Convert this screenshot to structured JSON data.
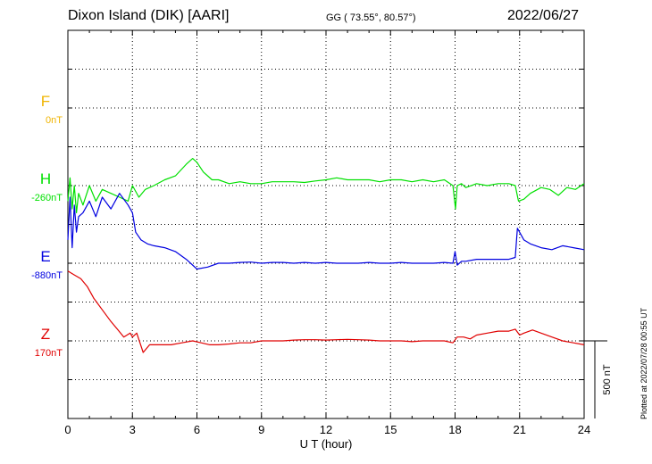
{
  "header": {
    "title": "Dixon Island (DIK)  [AARI]",
    "coords": "GG ( 73.55°,  80.57°)",
    "date": "2022/06/27"
  },
  "footer": {
    "plotted": "Plotted at 2022/07/28 00:55 UT"
  },
  "chart_data": {
    "type": "line",
    "xlabel": "U T (hour)",
    "xlim": [
      0,
      24
    ],
    "xticks": [
      0,
      3,
      6,
      9,
      12,
      15,
      18,
      21,
      24
    ],
    "ylim": [
      -1000,
      0
    ],
    "grid": true,
    "scale_bar": {
      "label": "500 nT",
      "value_nT": 500
    },
    "series": [
      {
        "name": "F",
        "baseline_label": "0nT",
        "baseline_position_nT": -200,
        "color": "#f0b400",
        "x": [],
        "y": []
      },
      {
        "name": "H",
        "baseline_label": "-260nT",
        "baseline_position_nT": -400,
        "color": "#00e000",
        "x": [
          0,
          0.1,
          0.2,
          0.3,
          0.4,
          0.5,
          0.7,
          1,
          1.3,
          1.6,
          2,
          2.4,
          2.8,
          3,
          3.3,
          3.6,
          4,
          4.5,
          5,
          5.5,
          5.8,
          6,
          6.3,
          6.7,
          7,
          7.5,
          8,
          8.5,
          9,
          9.5,
          10,
          10.5,
          11,
          11.5,
          12,
          12.5,
          13,
          13.5,
          14,
          14.5,
          15,
          15.5,
          16,
          16.5,
          17,
          17.5,
          17.9,
          18.02,
          18.1,
          18.3,
          18.5,
          19,
          19.5,
          20,
          20.5,
          20.8,
          20.95,
          21.2,
          21.5,
          22,
          22.4,
          22.8,
          23.2,
          23.6,
          24
        ],
        "y": [
          -440,
          -380,
          -460,
          -400,
          -470,
          -420,
          -450,
          -400,
          -440,
          -410,
          -420,
          -430,
          -440,
          -400,
          -430,
          -410,
          -400,
          -385,
          -375,
          -345,
          -330,
          -340,
          -365,
          -385,
          -385,
          -395,
          -390,
          -395,
          -395,
          -390,
          -390,
          -390,
          -392,
          -388,
          -385,
          -380,
          -385,
          -385,
          -385,
          -390,
          -385,
          -385,
          -390,
          -385,
          -390,
          -385,
          -400,
          -460,
          -400,
          -395,
          -405,
          -395,
          -400,
          -395,
          -395,
          -400,
          -440,
          -435,
          -420,
          -405,
          -410,
          -425,
          -405,
          -410,
          -395
        ]
      },
      {
        "name": "E",
        "baseline_label": "-880nT",
        "baseline_position_nT": -600,
        "color": "#0000e0",
        "x": [
          0,
          0.1,
          0.2,
          0.3,
          0.4,
          0.5,
          0.7,
          1,
          1.3,
          1.6,
          2,
          2.4,
          2.8,
          3,
          3.15,
          3.4,
          3.7,
          4,
          4.5,
          5,
          5.5,
          6,
          6.5,
          7,
          7.5,
          8,
          8.5,
          9,
          9.5,
          10,
          10.5,
          11,
          11.5,
          12,
          12.5,
          13,
          13.5,
          14,
          14.5,
          15,
          15.5,
          16,
          16.5,
          17,
          17.5,
          17.9,
          18.0,
          18.1,
          18.3,
          18.5,
          19,
          19.5,
          20,
          20.5,
          20.8,
          20.9,
          21.2,
          21.5,
          22,
          22.5,
          23,
          23.5,
          24
        ],
        "y": [
          -540,
          -430,
          -560,
          -450,
          -520,
          -480,
          -470,
          -440,
          -480,
          -430,
          -460,
          -420,
          -450,
          -470,
          -520,
          -540,
          -550,
          -555,
          -560,
          -570,
          -590,
          -615,
          -610,
          -600,
          -600,
          -598,
          -597,
          -600,
          -598,
          -598,
          -600,
          -598,
          -600,
          -598,
          -600,
          -600,
          -600,
          -598,
          -600,
          -600,
          -598,
          -600,
          -600,
          -600,
          -598,
          -600,
          -570,
          -605,
          -595,
          -595,
          -590,
          -590,
          -590,
          -590,
          -585,
          -510,
          -540,
          -550,
          -560,
          -565,
          -555,
          -560,
          -565
        ]
      },
      {
        "name": "Z",
        "baseline_label": "170nT",
        "baseline_position_nT": -800,
        "color": "#e00000",
        "x": [
          0,
          0.3,
          0.6,
          0.9,
          1.2,
          1.6,
          2,
          2.3,
          2.6,
          2.9,
          3,
          3.2,
          3.5,
          3.8,
          4.2,
          4.8,
          5.3,
          5.8,
          6.2,
          6.6,
          7,
          7.5,
          8,
          8.5,
          9,
          9.5,
          10,
          10.5,
          11,
          11.5,
          12,
          12.5,
          13,
          13.5,
          14,
          14.5,
          15,
          15.5,
          16,
          16.5,
          17,
          17.5,
          17.9,
          18.1,
          18.4,
          18.7,
          19,
          19.5,
          20,
          20.5,
          20.8,
          21,
          21.2,
          21.6,
          22,
          22.5,
          23,
          23.5,
          24
        ],
        "y": [
          -620,
          -630,
          -640,
          -660,
          -690,
          -720,
          -750,
          -770,
          -790,
          -780,
          -790,
          -780,
          -830,
          -810,
          -810,
          -810,
          -805,
          -800,
          -805,
          -810,
          -810,
          -808,
          -805,
          -805,
          -800,
          -800,
          -800,
          -798,
          -797,
          -797,
          -798,
          -797,
          -796,
          -797,
          -798,
          -800,
          -800,
          -800,
          -802,
          -800,
          -800,
          -800,
          -805,
          -790,
          -790,
          -795,
          -785,
          -780,
          -775,
          -775,
          -770,
          -785,
          -780,
          -772,
          -780,
          -790,
          -800,
          -805,
          -810
        ]
      }
    ]
  }
}
